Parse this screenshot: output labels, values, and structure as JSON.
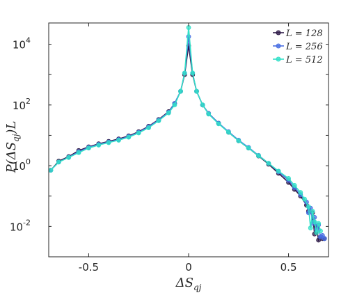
{
  "chart_data": {
    "type": "line",
    "x_label": "ΔS_qj",
    "y_label": "P(ΔS_qj)L",
    "xlim": [
      -0.7,
      0.7
    ],
    "ylim_log10": [
      -3,
      4.7
    ],
    "y_scale": "log",
    "grid": false,
    "legend_position": "top-right",
    "x_ticks": [
      {
        "value": -0.5,
        "label": "-0.5"
      },
      {
        "value": 0,
        "label": "0"
      },
      {
        "value": 0.5,
        "label": "0.5"
      }
    ],
    "y_ticks": [
      {
        "value": -2,
        "base": "10",
        "exp": "-2"
      },
      {
        "value": 0,
        "base": "10",
        "exp": "0"
      },
      {
        "value": 2,
        "base": "10",
        "exp": "2"
      },
      {
        "value": 4,
        "base": "10",
        "exp": "4"
      }
    ],
    "series": [
      {
        "name": "L = 128",
        "color": "#2e1a47",
        "points": [
          [
            -0.69,
            -0.15
          ],
          [
            -0.65,
            0.15
          ],
          [
            -0.6,
            0.3
          ],
          [
            -0.55,
            0.5
          ],
          [
            -0.5,
            0.62
          ],
          [
            -0.45,
            0.72
          ],
          [
            -0.4,
            0.8
          ],
          [
            -0.35,
            0.88
          ],
          [
            -0.3,
            0.98
          ],
          [
            -0.25,
            1.12
          ],
          [
            -0.2,
            1.3
          ],
          [
            -0.15,
            1.52
          ],
          [
            -0.1,
            1.78
          ],
          [
            -0.07,
            2.05
          ],
          [
            -0.04,
            2.45
          ],
          [
            -0.02,
            3.0
          ],
          [
            0,
            3.95
          ],
          [
            0.02,
            3.0
          ],
          [
            0.04,
            2.45
          ],
          [
            0.07,
            2.0
          ],
          [
            0.1,
            1.72
          ],
          [
            0.15,
            1.4
          ],
          [
            0.2,
            1.1
          ],
          [
            0.25,
            0.82
          ],
          [
            0.3,
            0.58
          ],
          [
            0.35,
            0.32
          ],
          [
            0.4,
            0.05
          ],
          [
            0.45,
            -0.25
          ],
          [
            0.5,
            -0.55
          ],
          [
            0.53,
            -0.78
          ],
          [
            0.56,
            -1.0
          ],
          [
            0.59,
            -1.3
          ],
          [
            0.6,
            -1.5
          ],
          [
            0.62,
            -1.55
          ],
          [
            0.63,
            -2.25
          ],
          [
            0.64,
            -2.0
          ],
          [
            0.65,
            -2.45
          ],
          [
            0.66,
            -2.35
          ],
          [
            0.67,
            -2.4
          ],
          [
            0.68,
            -2.4
          ]
        ]
      },
      {
        "name": "L = 256",
        "color": "#4a6fe3",
        "points": [
          [
            -0.69,
            -0.15
          ],
          [
            -0.65,
            0.12
          ],
          [
            -0.6,
            0.28
          ],
          [
            -0.55,
            0.46
          ],
          [
            -0.5,
            0.6
          ],
          [
            -0.45,
            0.7
          ],
          [
            -0.4,
            0.78
          ],
          [
            -0.35,
            0.86
          ],
          [
            -0.3,
            0.96
          ],
          [
            -0.25,
            1.1
          ],
          [
            -0.2,
            1.28
          ],
          [
            -0.15,
            1.5
          ],
          [
            -0.1,
            1.76
          ],
          [
            -0.07,
            2.05
          ],
          [
            -0.04,
            2.45
          ],
          [
            -0.02,
            3.05
          ],
          [
            0,
            4.25
          ],
          [
            0.02,
            3.05
          ],
          [
            0.04,
            2.45
          ],
          [
            0.07,
            2.0
          ],
          [
            0.1,
            1.72
          ],
          [
            0.15,
            1.4
          ],
          [
            0.2,
            1.12
          ],
          [
            0.25,
            0.84
          ],
          [
            0.3,
            0.6
          ],
          [
            0.35,
            0.34
          ],
          [
            0.4,
            0.08
          ],
          [
            0.45,
            -0.2
          ],
          [
            0.5,
            -0.48
          ],
          [
            0.53,
            -0.72
          ],
          [
            0.56,
            -0.95
          ],
          [
            0.59,
            -1.2
          ],
          [
            0.6,
            -1.55
          ],
          [
            0.61,
            -1.4
          ],
          [
            0.62,
            -1.9
          ],
          [
            0.63,
            -1.7
          ],
          [
            0.64,
            -2.1
          ],
          [
            0.65,
            -1.95
          ],
          [
            0.66,
            -2.35
          ],
          [
            0.67,
            -2.3
          ],
          [
            0.68,
            -2.4
          ]
        ]
      },
      {
        "name": "L = 512",
        "color": "#33e0c8",
        "points": [
          [
            -0.69,
            -0.15
          ],
          [
            -0.65,
            0.12
          ],
          [
            -0.6,
            0.27
          ],
          [
            -0.55,
            0.43
          ],
          [
            -0.5,
            0.58
          ],
          [
            -0.45,
            0.68
          ],
          [
            -0.4,
            0.76
          ],
          [
            -0.35,
            0.84
          ],
          [
            -0.3,
            0.94
          ],
          [
            -0.25,
            1.08
          ],
          [
            -0.2,
            1.25
          ],
          [
            -0.15,
            1.48
          ],
          [
            -0.1,
            1.74
          ],
          [
            -0.07,
            2.0
          ],
          [
            -0.04,
            2.45
          ],
          [
            -0.02,
            3.05
          ],
          [
            0,
            4.55
          ],
          [
            0.02,
            3.05
          ],
          [
            0.04,
            2.45
          ],
          [
            0.07,
            2.0
          ],
          [
            0.1,
            1.7
          ],
          [
            0.15,
            1.38
          ],
          [
            0.2,
            1.1
          ],
          [
            0.25,
            0.82
          ],
          [
            0.3,
            0.58
          ],
          [
            0.35,
            0.33
          ],
          [
            0.4,
            0.08
          ],
          [
            0.45,
            -0.18
          ],
          [
            0.5,
            -0.42
          ],
          [
            0.53,
            -0.65
          ],
          [
            0.56,
            -0.88
          ],
          [
            0.58,
            -1.1
          ],
          [
            0.6,
            -1.35
          ],
          [
            0.61,
            -2.05
          ],
          [
            0.62,
            -1.5
          ],
          [
            0.63,
            -1.85
          ],
          [
            0.64,
            -2.2
          ],
          [
            0.65,
            -1.9
          ],
          [
            0.66,
            -2.15
          ]
        ]
      }
    ]
  }
}
